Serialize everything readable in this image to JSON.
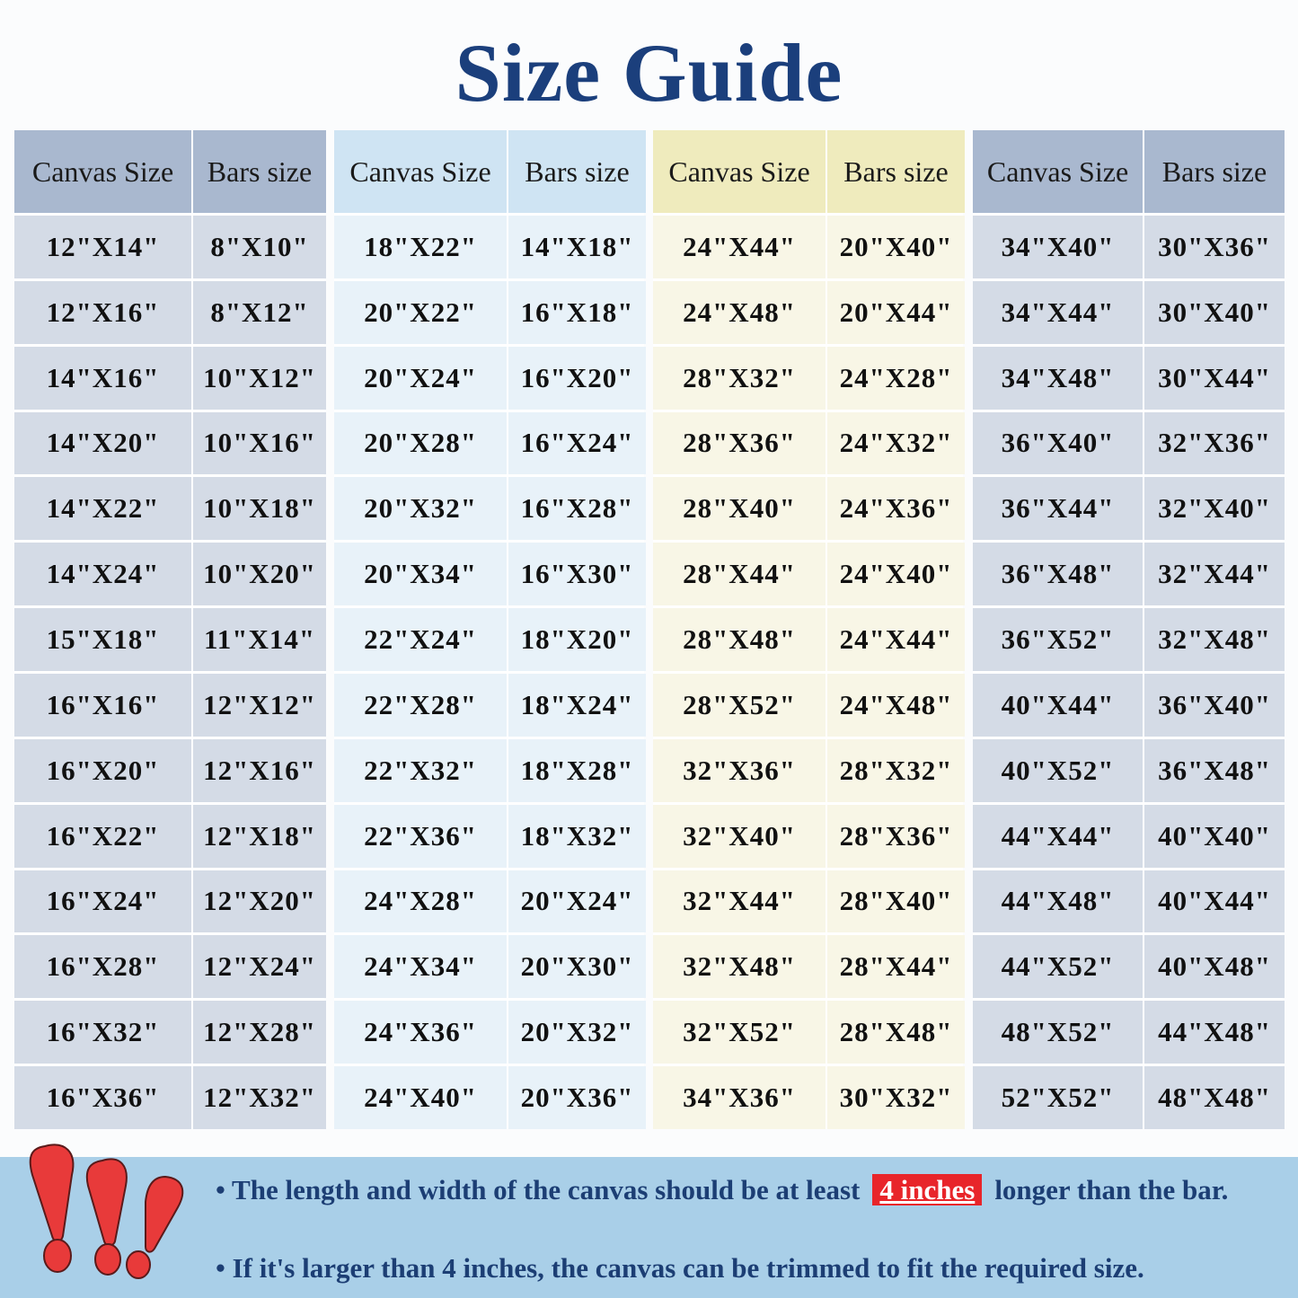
{
  "title": "Size Guide",
  "groups": [
    {
      "headers": [
        "Canvas Size",
        "Bars size"
      ],
      "rows": [
        [
          "12\"X14\"",
          "8\"X10\""
        ],
        [
          "12\"X16\"",
          "8\"X12\""
        ],
        [
          "14\"X16\"",
          "10\"X12\""
        ],
        [
          "14\"X20\"",
          "10\"X16\""
        ],
        [
          "14\"X22\"",
          "10\"X18\""
        ],
        [
          "14\"X24\"",
          "10\"X20\""
        ],
        [
          "15\"X18\"",
          "11\"X14\""
        ],
        [
          "16\"X16\"",
          "12\"X12\""
        ],
        [
          "16\"X20\"",
          "12\"X16\""
        ],
        [
          "16\"X22\"",
          "12\"X18\""
        ],
        [
          "16\"X24\"",
          "12\"X20\""
        ],
        [
          "16\"X28\"",
          "12\"X24\""
        ],
        [
          "16\"X32\"",
          "12\"X28\""
        ],
        [
          "16\"X36\"",
          "12\"X32\""
        ]
      ]
    },
    {
      "headers": [
        "Canvas Size",
        "Bars size"
      ],
      "rows": [
        [
          "18\"X22\"",
          "14\"X18\""
        ],
        [
          "20\"X22\"",
          "16\"X18\""
        ],
        [
          "20\"X24\"",
          "16\"X20\""
        ],
        [
          "20\"X28\"",
          "16\"X24\""
        ],
        [
          "20\"X32\"",
          "16\"X28\""
        ],
        [
          "20\"X34\"",
          "16\"X30\""
        ],
        [
          "22\"X24\"",
          "18\"X20\""
        ],
        [
          "22\"X28\"",
          "18\"X24\""
        ],
        [
          "22\"X32\"",
          "18\"X28\""
        ],
        [
          "22\"X36\"",
          "18\"X32\""
        ],
        [
          "24\"X28\"",
          "20\"X24\""
        ],
        [
          "24\"X34\"",
          "20\"X30\""
        ],
        [
          "24\"X36\"",
          "20\"X32\""
        ],
        [
          "24\"X40\"",
          "20\"X36\""
        ]
      ]
    },
    {
      "headers": [
        "Canvas Size",
        "Bars size"
      ],
      "rows": [
        [
          "24\"X44\"",
          "20\"X40\""
        ],
        [
          "24\"X48\"",
          "20\"X44\""
        ],
        [
          "28\"X32\"",
          "24\"X28\""
        ],
        [
          "28\"X36\"",
          "24\"X32\""
        ],
        [
          "28\"X40\"",
          "24\"X36\""
        ],
        [
          "28\"X44\"",
          "24\"X40\""
        ],
        [
          "28\"X48\"",
          "24\"X44\""
        ],
        [
          "28\"X52\"",
          "24\"X48\""
        ],
        [
          "32\"X36\"",
          "28\"X32\""
        ],
        [
          "32\"X40\"",
          "28\"X36\""
        ],
        [
          "32\"X44\"",
          "28\"X40\""
        ],
        [
          "32\"X48\"",
          "28\"X44\""
        ],
        [
          "32\"X52\"",
          "28\"X48\""
        ],
        [
          "34\"X36\"",
          "30\"X32\""
        ]
      ]
    },
    {
      "headers": [
        "Canvas Size",
        "Bars size"
      ],
      "rows": [
        [
          "34\"X40\"",
          "30\"X36\""
        ],
        [
          "34\"X44\"",
          "30\"X40\""
        ],
        [
          "34\"X48\"",
          "30\"X44\""
        ],
        [
          "36\"X40\"",
          "32\"X36\""
        ],
        [
          "36\"X44\"",
          "32\"X40\""
        ],
        [
          "36\"X48\"",
          "32\"X44\""
        ],
        [
          "36\"X52\"",
          "32\"X48\""
        ],
        [
          "40\"X44\"",
          "36\"X40\""
        ],
        [
          "40\"X52\"",
          "36\"X48\""
        ],
        [
          "44\"X44\"",
          "40\"X40\""
        ],
        [
          "44\"X48\"",
          "40\"X44\""
        ],
        [
          "44\"X52\"",
          "40\"X48\""
        ],
        [
          "48\"X52\"",
          "44\"X48\""
        ],
        [
          "52\"X52\"",
          "48\"X48\""
        ]
      ]
    }
  ],
  "notes": {
    "note1_before": "• The length and width of the canvas should be at least",
    "note1_highlight": "4 inches",
    "note1_after": "longer than the bar.",
    "note2": "• If it's larger than 4 inches, the canvas can be trimmed to fit the required size."
  },
  "icons": {
    "warning": "exclamation-marks-icon"
  },
  "colors": {
    "title": "#1b3f7c",
    "highlight": "#e8252a",
    "banner": "#a9cfe8"
  }
}
